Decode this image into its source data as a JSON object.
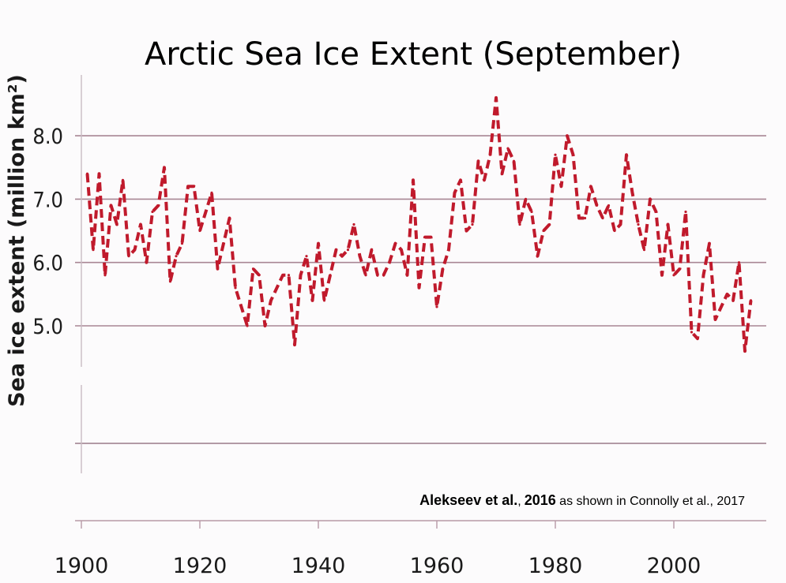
{
  "chart_data": {
    "type": "line",
    "title": "Arctic Sea Ice Extent (September)",
    "ylabel": "Sea ice extent (million km²)",
    "xlabel": "",
    "xlim": [
      1900,
      2014
    ],
    "ylim": [
      3.0,
      9.0
    ],
    "x_ticks": [
      1900,
      1920,
      1940,
      1960,
      1980,
      2000
    ],
    "x_tick_labels": [
      "1900",
      "1920",
      "1940",
      "1960",
      "1980",
      "2000"
    ],
    "y_ticks": [
      8.0,
      7.0,
      6.0,
      5.0
    ],
    "y_tick_labels": [
      "8.0",
      "7.0",
      "6.0",
      "5.0"
    ],
    "grid": "horizontal",
    "line_color": "#c01a2c",
    "line_style": "dashed",
    "series": [
      {
        "name": "",
        "x": [
          1901,
          1902,
          1903,
          1904,
          1905,
          1906,
          1907,
          1908,
          1909,
          1910,
          1911,
          1912,
          1913,
          1914,
          1915,
          1916,
          1917,
          1918,
          1919,
          1920,
          1921,
          1922,
          1923,
          1924,
          1925,
          1926,
          1927,
          1928,
          1929,
          1930,
          1931,
          1932,
          1933,
          1934,
          1935,
          1936,
          1937,
          1938,
          1939,
          1940,
          1941,
          1942,
          1943,
          1944,
          1945,
          1946,
          1947,
          1948,
          1949,
          1950,
          1951,
          1952,
          1953,
          1954,
          1955,
          1956,
          1957,
          1958,
          1959,
          1960,
          1961,
          1962,
          1963,
          1964,
          1965,
          1966,
          1967,
          1968,
          1969,
          1970,
          1971,
          1972,
          1973,
          1974,
          1975,
          1976,
          1977,
          1978,
          1979,
          1980,
          1981,
          1982,
          1983,
          1984,
          1985,
          1986,
          1987,
          1988,
          1989,
          1990,
          1991,
          1992,
          1993,
          1994,
          1995,
          1996,
          1997,
          1998,
          1999,
          2000,
          2001,
          2002,
          2003,
          2004,
          2005,
          2006,
          2007,
          2008,
          2009,
          2010,
          2011,
          2012,
          2013
        ],
        "values": [
          7.4,
          6.2,
          7.4,
          5.8,
          6.9,
          6.6,
          7.3,
          6.1,
          6.2,
          6.6,
          6.0,
          6.8,
          6.9,
          7.5,
          5.7,
          6.1,
          6.3,
          7.2,
          7.2,
          6.5,
          6.8,
          7.1,
          5.9,
          6.3,
          6.7,
          5.6,
          5.3,
          5.0,
          5.9,
          5.8,
          5.0,
          5.4,
          5.6,
          5.8,
          5.8,
          4.7,
          5.8,
          6.1,
          5.4,
          6.3,
          5.4,
          5.8,
          6.2,
          6.1,
          6.2,
          6.6,
          6.1,
          5.8,
          6.2,
          5.8,
          5.8,
          6.0,
          6.3,
          6.2,
          5.8,
          7.3,
          5.6,
          6.4,
          6.4,
          5.3,
          5.9,
          6.2,
          7.1,
          7.3,
          6.5,
          6.6,
          7.6,
          7.3,
          7.7,
          8.6,
          7.4,
          7.8,
          7.6,
          6.6,
          7.0,
          6.8,
          6.1,
          6.5,
          6.6,
          7.7,
          7.2,
          8.0,
          7.7,
          6.7,
          6.7,
          7.2,
          6.9,
          6.7,
          6.9,
          6.5,
          6.6,
          7.7,
          7.1,
          6.6,
          6.2,
          7.0,
          6.8,
          5.8,
          6.6,
          5.8,
          5.9,
          6.8,
          4.9,
          4.8,
          5.8,
          6.3,
          5.1,
          5.3,
          5.5,
          5.4,
          6.0,
          4.6,
          5.4
        ]
      }
    ],
    "annotations": {
      "cite_bold_1": "Alekseev et al.",
      "cite_plain_1": ",",
      "cite_bold_2": "2016",
      "cite_plain_2": " as shown in Connolly et al., 2017"
    }
  }
}
